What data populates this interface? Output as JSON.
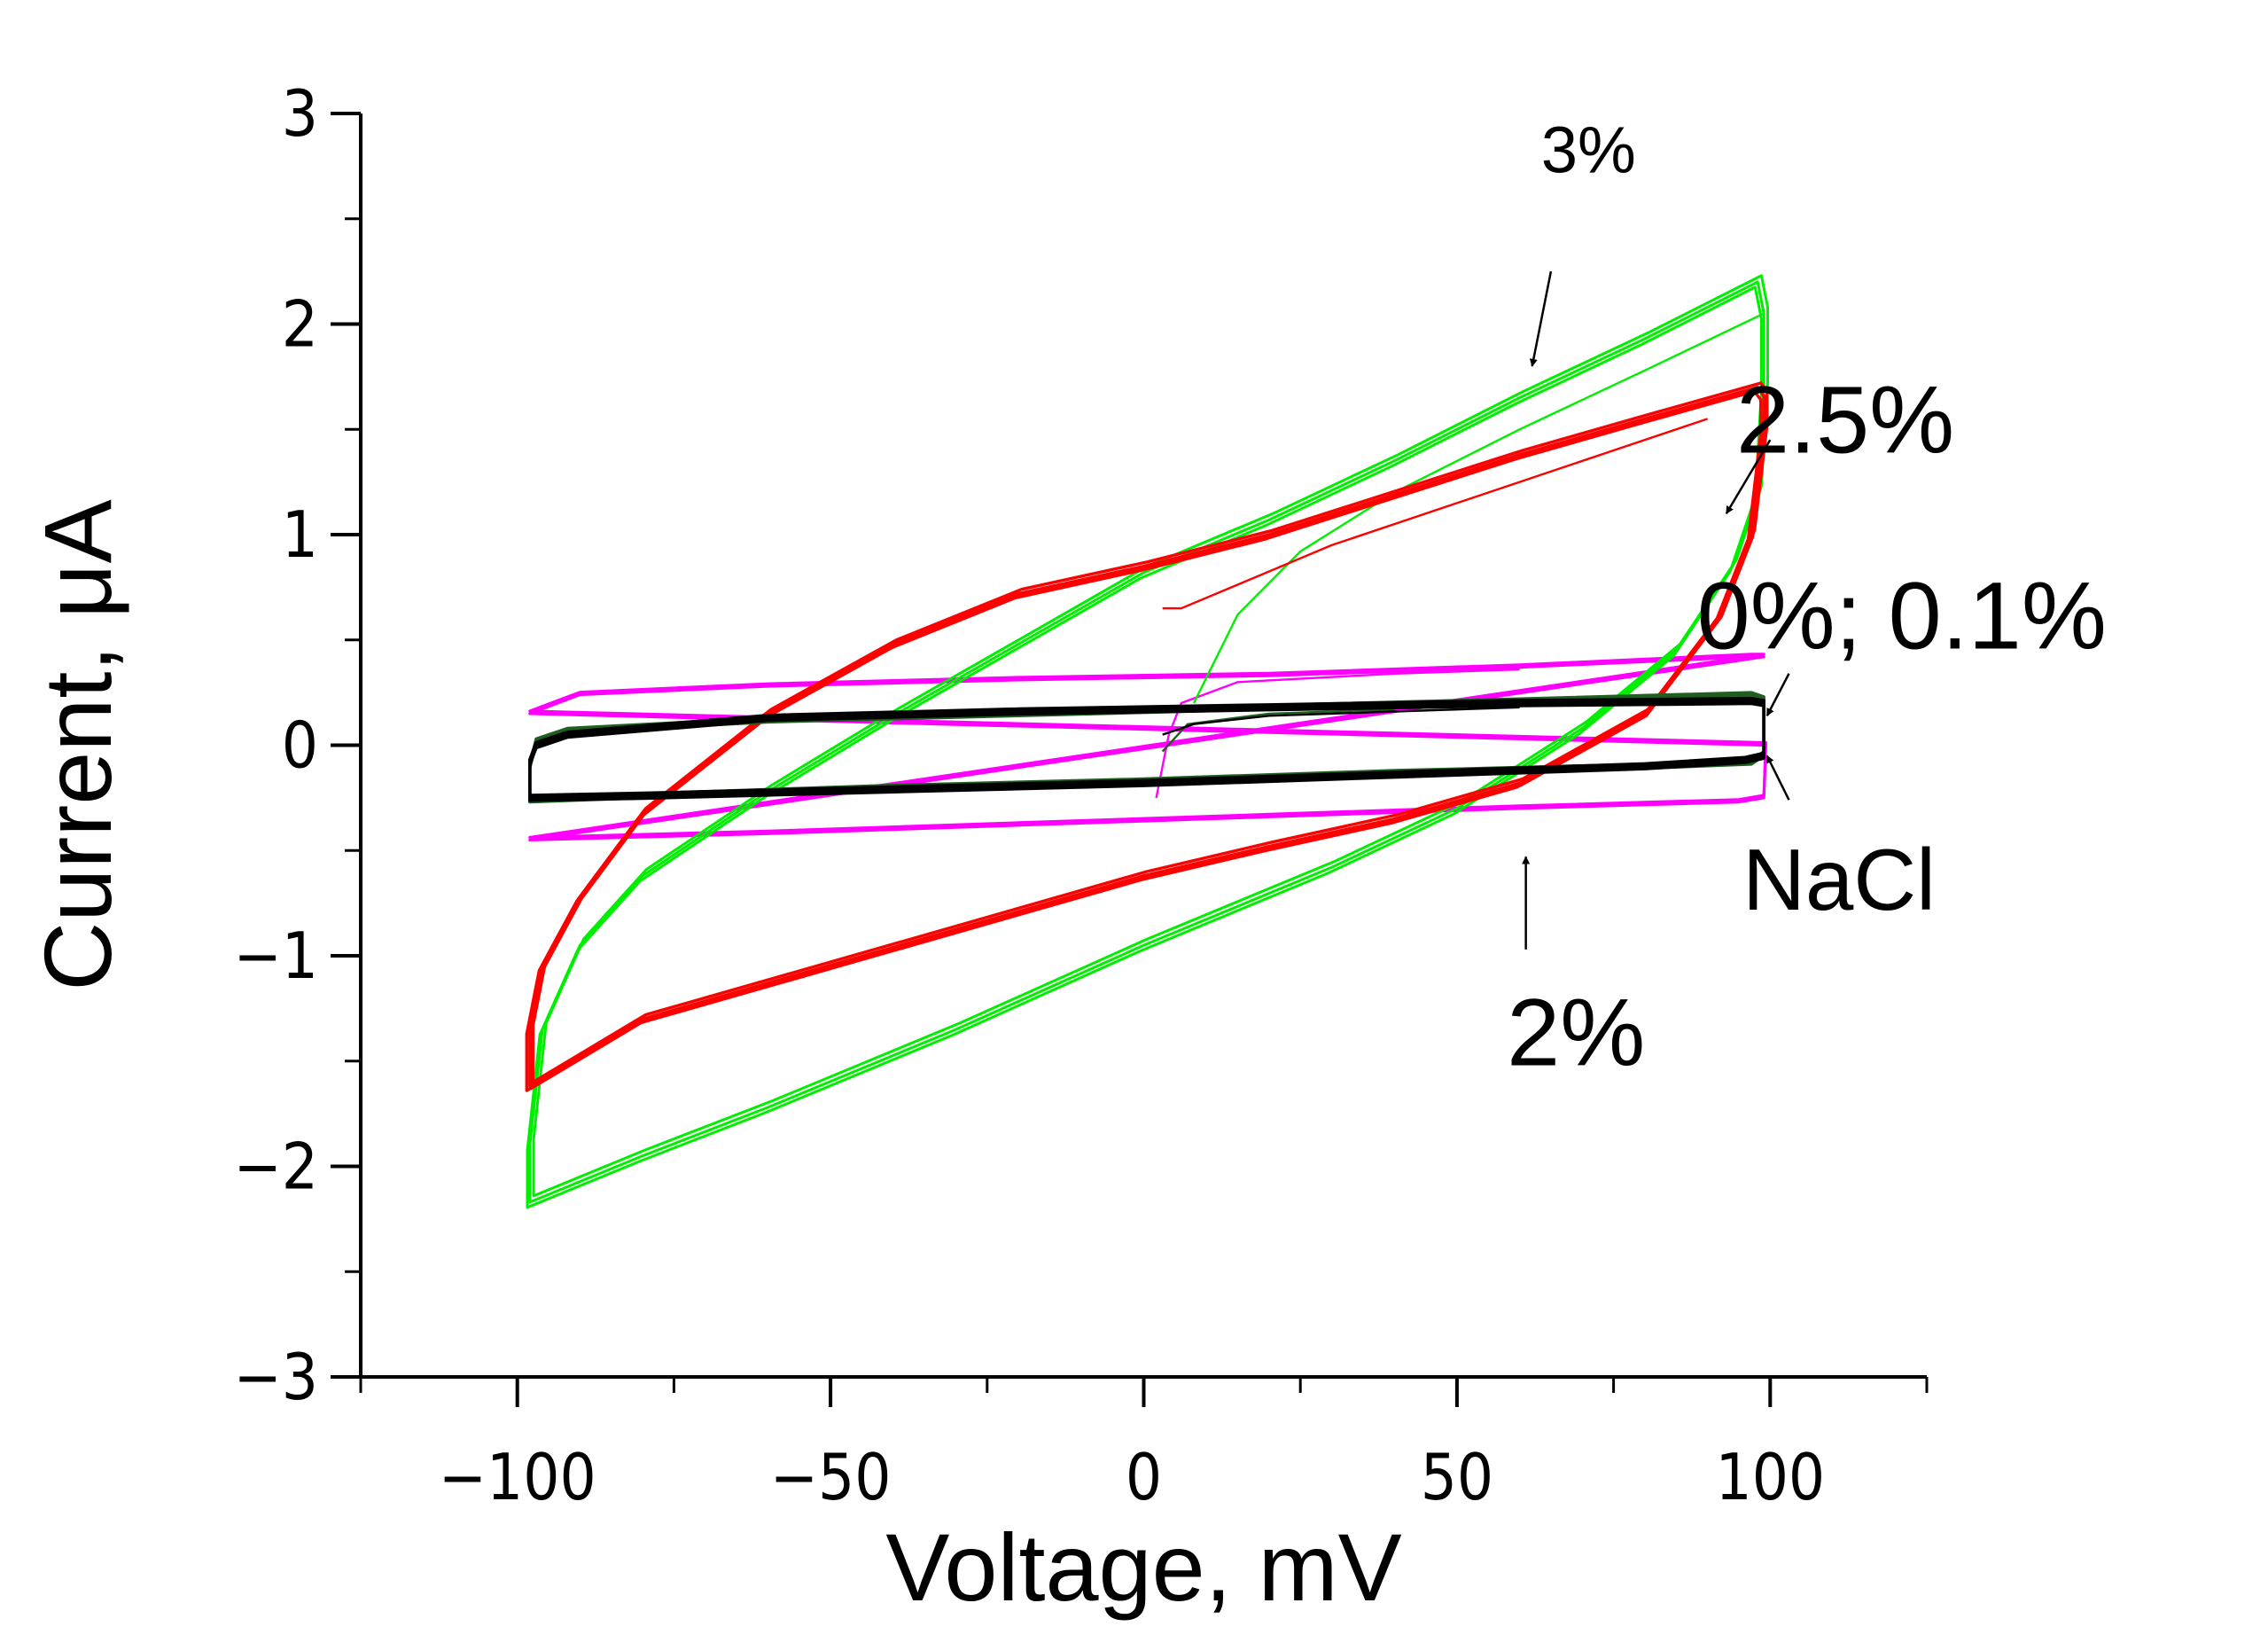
{
  "chart_data": {
    "type": "line",
    "title": "",
    "xlabel": "Voltage, mV",
    "ylabel": "Current, μA",
    "xlim": [
      -125,
      125
    ],
    "ylim": [
      -3,
      3
    ],
    "x_major_ticks": [
      -100,
      -50,
      0,
      50,
      100
    ],
    "x_minor_ticks": [
      -125,
      -75,
      -25,
      25,
      75,
      125
    ],
    "y_major_ticks": [
      -3,
      -2,
      -1,
      0,
      1,
      2,
      3
    ],
    "y_minor_ticks": [
      -2.5,
      -1.5,
      -0.5,
      0.5,
      1.5,
      2.5
    ],
    "x_tick_labels": [
      "−100",
      "−50",
      "0",
      "50",
      "100"
    ],
    "y_tick_labels": [
      "−3",
      "−2",
      "−1",
      "0",
      "1",
      "2",
      "3"
    ],
    "series": [
      {
        "name": "2%",
        "color": "#ff00ff",
        "loop": {
          "upper": [
            [
              -98,
              0.15
            ],
            [
              -90,
              0.24
            ],
            [
              -60,
              0.28
            ],
            [
              -20,
              0.31
            ],
            [
              20,
              0.33
            ],
            [
              60,
              0.37
            ],
            [
              97,
              0.42
            ],
            [
              99,
              0.42
            ]
          ],
          "lower": [
            [
              -98,
              -0.45
            ],
            [
              -60,
              -0.42
            ],
            [
              -20,
              -0.38
            ],
            [
              20,
              -0.34
            ],
            [
              60,
              -0.3
            ],
            [
              95,
              -0.27
            ],
            [
              99,
              -0.25
            ],
            [
              99.3,
              0
            ]
          ],
          "start": [
            [
              2,
              -0.25
            ],
            [
              4,
              0.05
            ],
            [
              6,
              0.2
            ],
            [
              15,
              0.3
            ],
            [
              40,
              0.34
            ],
            [
              60,
              0.36
            ]
          ]
        }
      },
      {
        "name": "3%",
        "color": "#00ee00",
        "loop": {
          "upper": [
            [
              -98,
              -2.15
            ],
            [
              -98,
              -1.9
            ],
            [
              -96,
              -1.35
            ],
            [
              -90,
              -0.95
            ],
            [
              -80,
              -0.62
            ],
            [
              -60,
              -0.22
            ],
            [
              -40,
              0.14
            ],
            [
              -20,
              0.48
            ],
            [
              0,
              0.82
            ],
            [
              20,
              1.07
            ],
            [
              40,
              1.35
            ],
            [
              60,
              1.65
            ],
            [
              80,
              1.93
            ],
            [
              98,
              2.2
            ]
          ],
          "lower": [
            [
              99,
              2.05
            ],
            [
              99,
              1.7
            ],
            [
              98,
              1.2
            ],
            [
              94,
              0.85
            ],
            [
              85,
              0.45
            ],
            [
              70,
              0.08
            ],
            [
              50,
              -0.3
            ],
            [
              30,
              -0.58
            ],
            [
              0,
              -0.95
            ],
            [
              -30,
              -1.35
            ],
            [
              -60,
              -1.72
            ],
            [
              -80,
              -1.95
            ],
            [
              -98,
              -2.17
            ]
          ],
          "start": [
            [
              8,
              0.2
            ],
            [
              15,
              0.62
            ],
            [
              25,
              0.92
            ],
            [
              40,
              1.2
            ],
            [
              60,
              1.5
            ],
            [
              80,
              1.78
            ],
            [
              99,
              2.05
            ]
          ]
        }
      },
      {
        "name": "2.5%",
        "color": "#ff0000",
        "loop": {
          "upper": [
            [
              -98,
              -1.62
            ],
            [
              -98,
              -1.35
            ],
            [
              -96,
              -1.05
            ],
            [
              -90,
              -0.72
            ],
            [
              -80,
              -0.32
            ],
            [
              -60,
              0.15
            ],
            [
              -40,
              0.48
            ],
            [
              -20,
              0.72
            ],
            [
              0,
              0.85
            ],
            [
              20,
              1.0
            ],
            [
              40,
              1.19
            ],
            [
              60,
              1.38
            ],
            [
              80,
              1.55
            ],
            [
              98,
              1.7
            ]
          ],
          "lower": [
            [
              99,
              1.66
            ],
            [
              99,
              1.5
            ],
            [
              97,
              1.0
            ],
            [
              92,
              0.62
            ],
            [
              80,
              0.15
            ],
            [
              60,
              -0.18
            ],
            [
              40,
              -0.35
            ],
            [
              20,
              -0.48
            ],
            [
              0,
              -0.62
            ],
            [
              -40,
              -0.96
            ],
            [
              -80,
              -1.3
            ],
            [
              -98,
              -1.62
            ]
          ],
          "start": [
            [
              3,
              0.65
            ],
            [
              6,
              0.65
            ],
            [
              30,
              0.95
            ],
            [
              60,
              1.25
            ],
            [
              90,
              1.55
            ]
          ]
        }
      },
      {
        "name": "NaCl",
        "color": "#1f5f1f",
        "loop": {
          "upper": [
            [
              -98,
              -0.1
            ],
            [
              -97,
              0.02
            ],
            [
              -92,
              0.07
            ],
            [
              -60,
              0.12
            ],
            [
              -20,
              0.15
            ],
            [
              20,
              0.18
            ],
            [
              60,
              0.21
            ],
            [
              97,
              0.24
            ]
          ],
          "lower": [
            [
              99,
              0.22
            ],
            [
              99,
              -0.04
            ],
            [
              97,
              -0.08
            ],
            [
              80,
              -0.1
            ],
            [
              40,
              -0.13
            ],
            [
              0,
              -0.17
            ],
            [
              -40,
              -0.2
            ],
            [
              -80,
              -0.24
            ],
            [
              -98,
              -0.26
            ]
          ],
          "start": [
            [
              3,
              -0.03
            ],
            [
              7,
              0.1
            ],
            [
              20,
              0.15
            ],
            [
              40,
              0.17
            ]
          ]
        }
      },
      {
        "name": "0%; 0.1%",
        "color": "#000000",
        "loop": {
          "upper": [
            [
              -98,
              -0.08
            ],
            [
              -97,
              0.0
            ],
            [
              -92,
              0.05
            ],
            [
              -60,
              0.13
            ],
            [
              -20,
              0.16
            ],
            [
              20,
              0.18
            ],
            [
              60,
              0.2
            ],
            [
              97,
              0.21
            ]
          ],
          "lower": [
            [
              99,
              0.2
            ],
            [
              99,
              -0.05
            ],
            [
              96,
              -0.07
            ],
            [
              80,
              -0.1
            ],
            [
              50,
              -0.13
            ],
            [
              40,
              -0.14
            ],
            [
              0,
              -0.18
            ],
            [
              -40,
              -0.21
            ],
            [
              -80,
              -0.24
            ],
            [
              -98,
              -0.25
            ]
          ],
          "start": [
            [
              3,
              0.05
            ],
            [
              8,
              0.1
            ],
            [
              20,
              0.14
            ],
            [
              40,
              0.16
            ],
            [
              60,
              0.18
            ]
          ]
        }
      }
    ],
    "annotations": [
      {
        "text": "3%",
        "size": "small",
        "text_pos": [
          71,
          2.72
        ],
        "arrow_from": [
          65,
          2.25
        ],
        "arrow_to": [
          62,
          1.8
        ]
      },
      {
        "text": "2.5%",
        "size": "large",
        "text_pos": [
          112,
          1.39
        ],
        "arrow_from": [
          100,
          1.45
        ],
        "arrow_to": [
          93,
          1.1
        ]
      },
      {
        "text": "0%; 0.1%",
        "size": "large",
        "text_pos": [
          121,
          0.46
        ],
        "arrow_from": [
          103,
          0.34
        ],
        "arrow_to": [
          99.5,
          0.14
        ]
      },
      {
        "text": "NaCl",
        "size": "medium",
        "text_pos": [
          111,
          -0.78
        ],
        "arrow_from": [
          103,
          -0.26
        ],
        "arrow_to": [
          99.5,
          -0.05
        ]
      },
      {
        "text": "2%",
        "size": "large",
        "text_pos": [
          69,
          -1.52
        ],
        "arrow_from": [
          61,
          -0.97
        ],
        "arrow_to": [
          61,
          -0.53
        ]
      }
    ]
  }
}
